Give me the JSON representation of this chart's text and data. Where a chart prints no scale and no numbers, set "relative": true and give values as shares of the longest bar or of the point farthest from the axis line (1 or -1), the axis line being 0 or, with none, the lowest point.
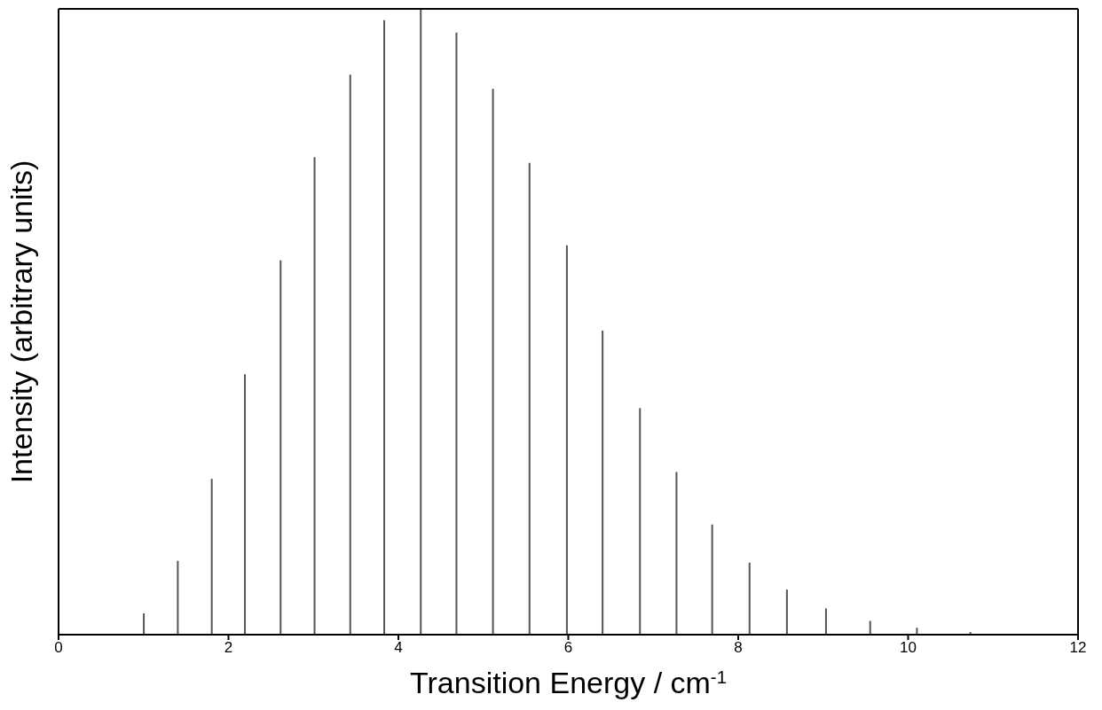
{
  "chart_data": {
    "type": "bar",
    "relative": true,
    "xlabel": "Transition Energy / cm$^{-1}$",
    "ylabel": "Intensity (arbitrary units)",
    "x": [
      1.0,
      1.4,
      1.8,
      2.19,
      2.61,
      3.01,
      3.43,
      3.83,
      4.26,
      4.68,
      5.11,
      5.54,
      5.98,
      6.4,
      6.84,
      7.27,
      7.69,
      8.13,
      8.57,
      9.03,
      9.55,
      10.1,
      10.73
    ],
    "values": [
      0.034,
      0.118,
      0.249,
      0.416,
      0.598,
      0.763,
      0.895,
      0.982,
      1.0,
      0.962,
      0.872,
      0.754,
      0.622,
      0.486,
      0.362,
      0.26,
      0.176,
      0.115,
      0.072,
      0.042,
      0.022,
      0.011,
      0.004
    ],
    "color": "#555555",
    "xlim": [
      0,
      12
    ],
    "xticks": [
      0,
      2,
      4,
      6,
      8,
      10,
      12
    ],
    "grid": false,
    "legend": false
  }
}
